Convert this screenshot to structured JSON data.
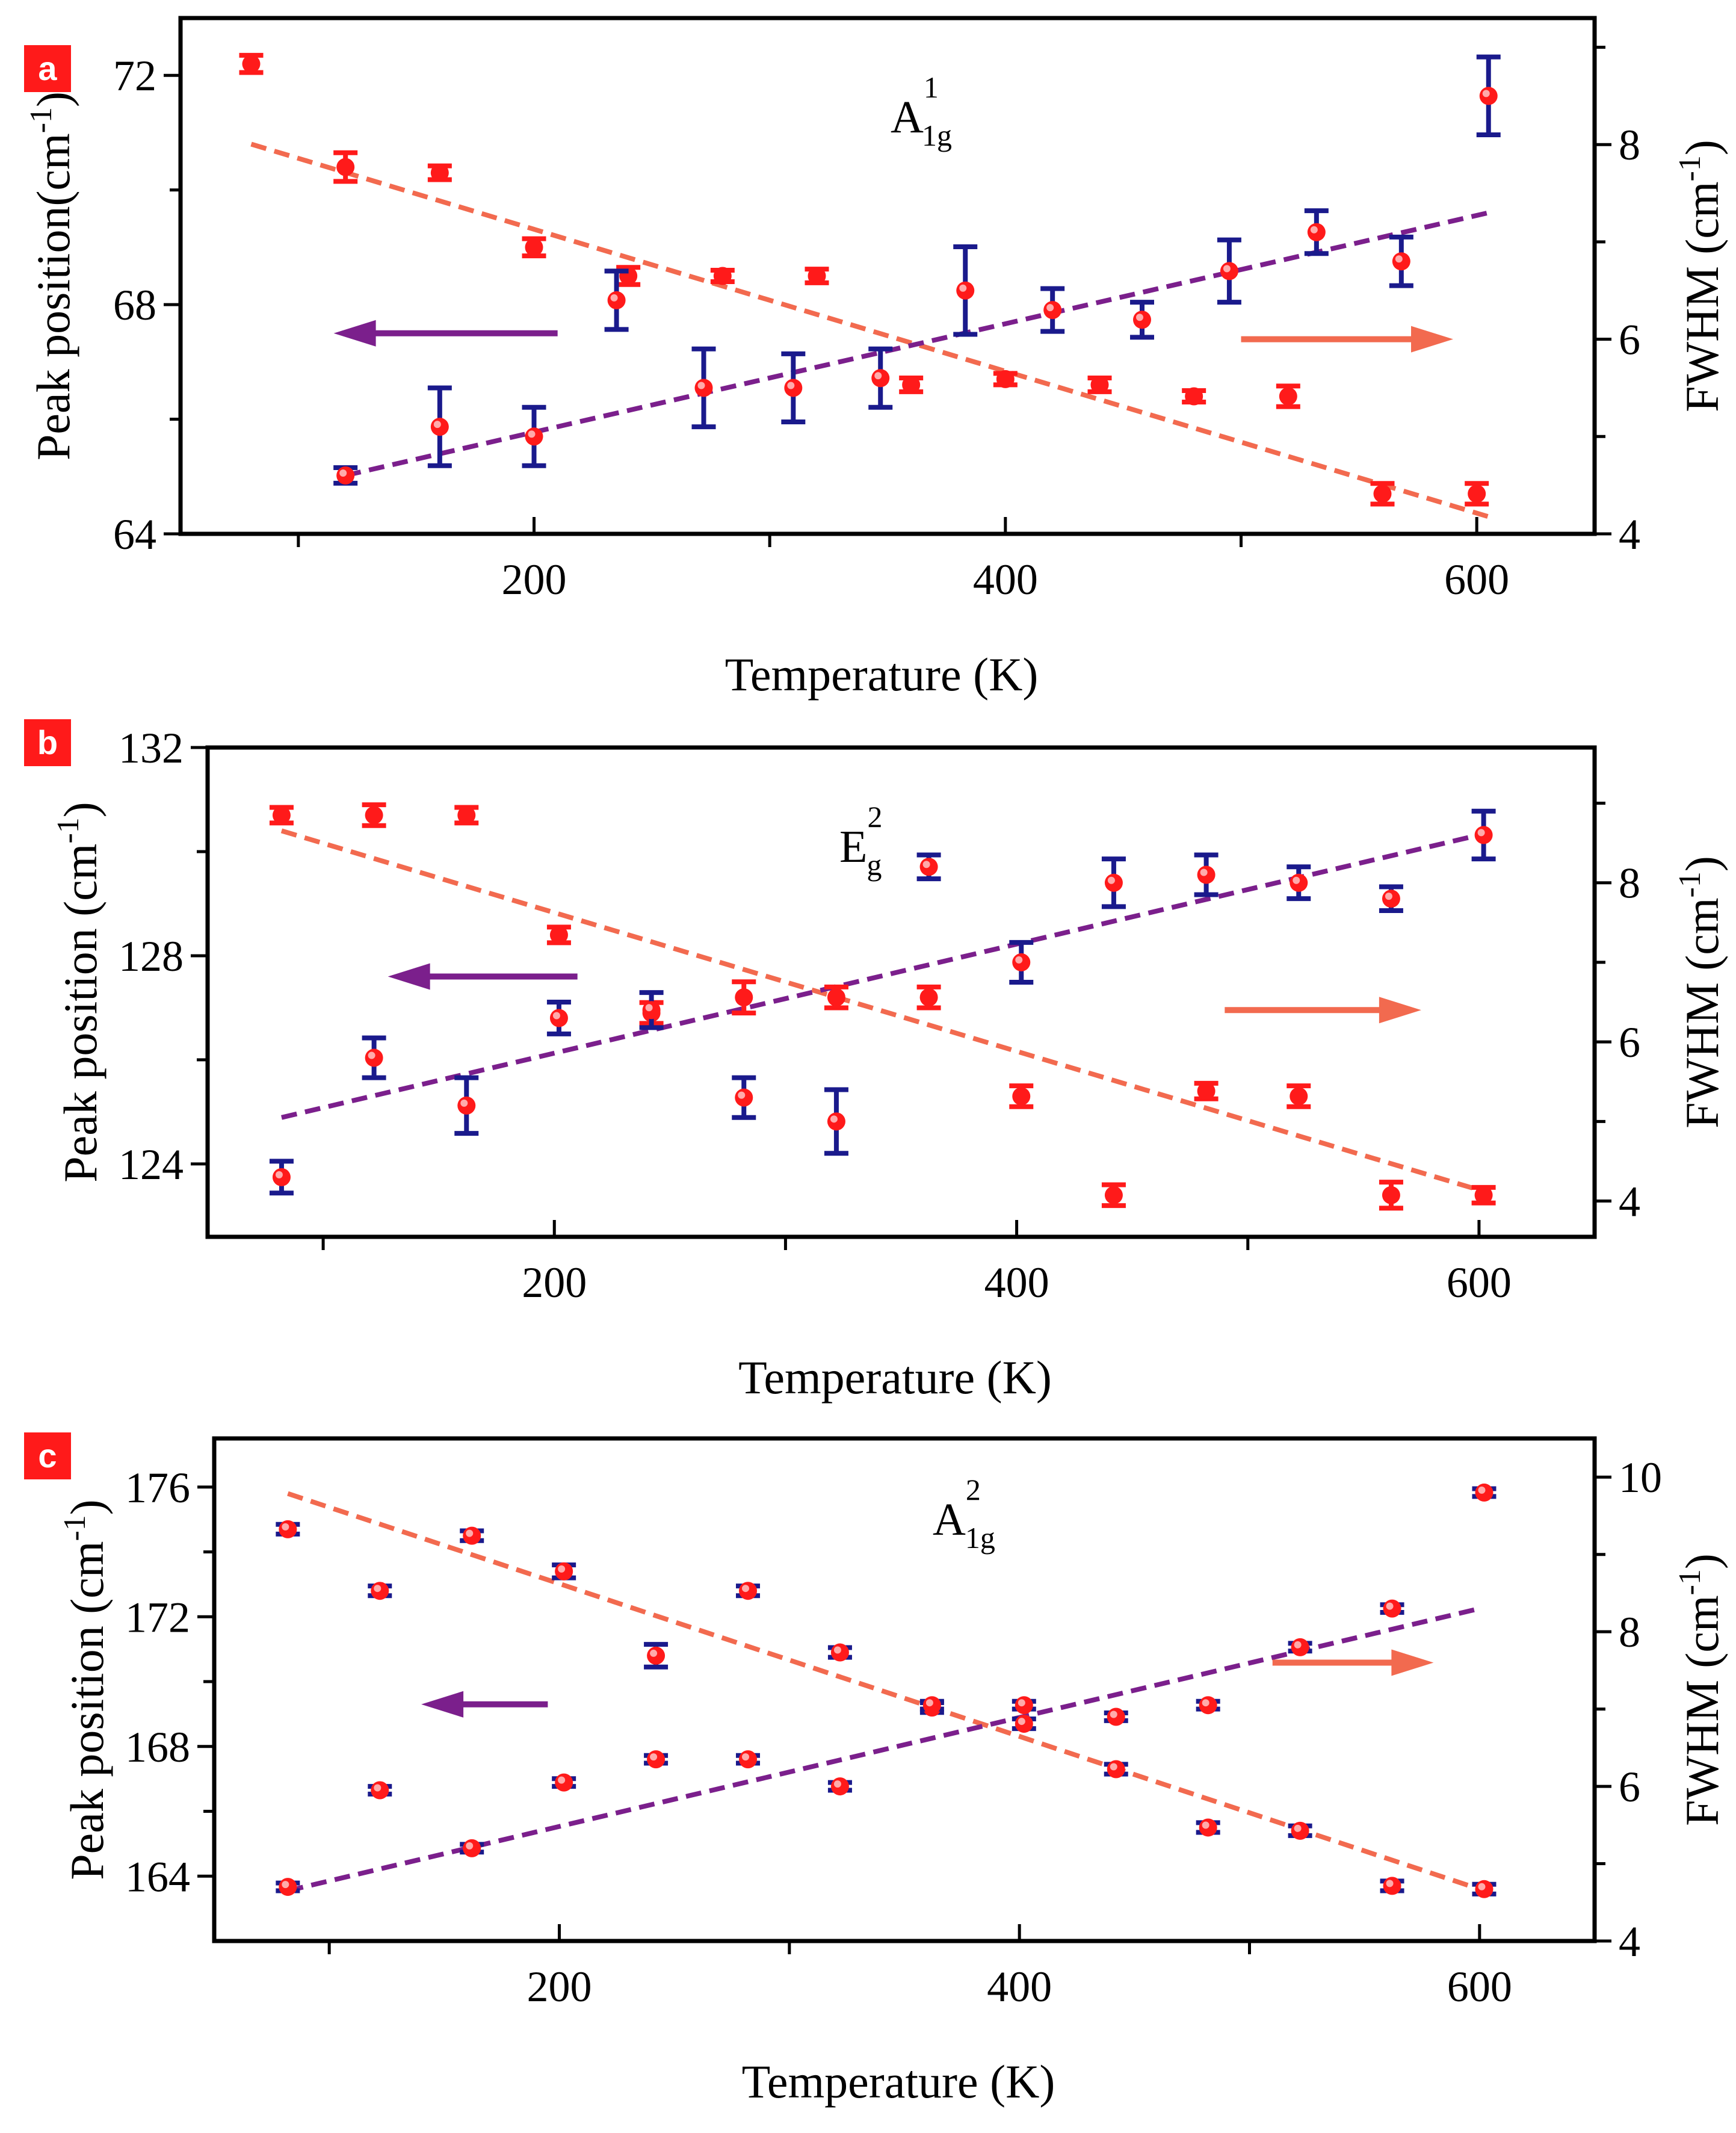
{
  "colors": {
    "peak": "#f26a4f",
    "fwhm": "#7b1f8c",
    "marker_red": "#ff1a1a",
    "marker_blue": "#1a1a8c",
    "badge": "#ff1a1a"
  },
  "chart_data": [
    {
      "type": "scatter",
      "panel": "a",
      "mode": {
        "base": "A",
        "sub": "1g",
        "sup": "1"
      },
      "xlabel": "Temperature (K)",
      "ylabel": "Peak position(cm⁻¹)",
      "ylabel_parts": {
        "main": "Peak position(cm",
        "sup": "-1",
        "tail": ")"
      },
      "y2label_parts": {
        "main": "FWHM (cm",
        "sup": "-1",
        "tail": ")"
      },
      "xlim": [
        50,
        650
      ],
      "ylim": [
        64,
        73
      ],
      "y2lim": [
        4,
        9.3
      ],
      "xticks": [
        200,
        400,
        600
      ],
      "xticks_minor": [
        100,
        300,
        500
      ],
      "yticks": [
        64,
        68,
        72
      ],
      "yticks_minor": [
        66,
        70
      ],
      "y2ticks": [
        4,
        6,
        8
      ],
      "y2ticks_minor": [
        5,
        7,
        9
      ],
      "series": [
        {
          "name": "Peak position",
          "axis": "left",
          "marker_color": "#ff1a1a",
          "errbar_color": "#ff1a1a",
          "points": [
            {
              "x": 80,
              "y": 72.2,
              "err": 0.15
            },
            {
              "x": 120,
              "y": 70.4,
              "err": 0.25
            },
            {
              "x": 160,
              "y": 70.3,
              "err": 0.12
            },
            {
              "x": 200,
              "y": 69.0,
              "err": 0.15
            },
            {
              "x": 240,
              "y": 68.5,
              "err": 0.15
            },
            {
              "x": 280,
              "y": 68.5,
              "err": 0.1
            },
            {
              "x": 320,
              "y": 68.5,
              "err": 0.12
            },
            {
              "x": 360,
              "y": 66.6,
              "err": 0.12
            },
            {
              "x": 400,
              "y": 66.7,
              "err": 0.1
            },
            {
              "x": 440,
              "y": 66.6,
              "err": 0.12
            },
            {
              "x": 480,
              "y": 66.4,
              "err": 0.1
            },
            {
              "x": 520,
              "y": 66.4,
              "err": 0.18
            },
            {
              "x": 560,
              "y": 64.7,
              "err": 0.18
            },
            {
              "x": 600,
              "y": 64.7,
              "err": 0.18
            }
          ]
        },
        {
          "name": "FWHM",
          "axis": "right",
          "marker_color": "#ff1a1a",
          "errbar_color": "#1a1a8c",
          "points": [
            {
              "x": 120,
              "y": 4.6,
              "err": 0.08
            },
            {
              "x": 160,
              "y": 5.1,
              "err": 0.4
            },
            {
              "x": 200,
              "y": 5.0,
              "err": 0.3
            },
            {
              "x": 235,
              "y": 6.4,
              "err": 0.3
            },
            {
              "x": 272,
              "y": 5.5,
              "err": 0.4
            },
            {
              "x": 310,
              "y": 5.5,
              "err": 0.35
            },
            {
              "x": 347,
              "y": 5.6,
              "err": 0.3
            },
            {
              "x": 383,
              "y": 6.5,
              "err": 0.45
            },
            {
              "x": 420,
              "y": 6.3,
              "err": 0.22
            },
            {
              "x": 458,
              "y": 6.2,
              "err": 0.18
            },
            {
              "x": 495,
              "y": 6.7,
              "err": 0.32
            },
            {
              "x": 532,
              "y": 7.1,
              "err": 0.22
            },
            {
              "x": 568,
              "y": 6.8,
              "err": 0.25
            },
            {
              "x": 605,
              "y": 8.5,
              "err": 0.4
            }
          ]
        }
      ],
      "fits": [
        {
          "name": "Peak position fit",
          "axis": "left",
          "color": "#f26a4f",
          "x": [
            80,
            605
          ],
          "y": [
            70.8,
            64.3
          ]
        },
        {
          "name": "FWHM fit",
          "axis": "right",
          "color": "#7b1f8c",
          "x": [
            120,
            605
          ],
          "y": [
            4.6,
            7.3
          ]
        }
      ],
      "arrows": [
        {
          "axis": "left",
          "direction": "left",
          "color": "#7b1f8c",
          "x": [
            115,
            210
          ],
          "y": 67.5
        },
        {
          "axis": "right",
          "direction": "right",
          "color": "#f26a4f",
          "x": [
            500,
            590
          ],
          "y": 6.0
        }
      ]
    },
    {
      "type": "scatter",
      "panel": "b",
      "mode": {
        "base": "E",
        "sub": "g",
        "sup": "2"
      },
      "xlabel": "Temperature (K)",
      "ylabel_parts": {
        "main": "Peak position (cm",
        "sup": "-1",
        "tail": ")"
      },
      "y2label_parts": {
        "main": "FWHM (cm",
        "sup": "-1",
        "tail": ")"
      },
      "xlim": [
        50,
        650
      ],
      "ylim": [
        122.6,
        132
      ],
      "y2lim": [
        3.55,
        9.7
      ],
      "xticks": [
        200,
        400,
        600
      ],
      "xticks_minor": [
        100,
        300,
        500
      ],
      "yticks": [
        124,
        128,
        132
      ],
      "yticks_minor": [
        126,
        130
      ],
      "y2ticks": [
        4,
        6,
        8
      ],
      "y2ticks_minor": [
        5,
        7,
        9
      ],
      "series": [
        {
          "name": "Peak position",
          "axis": "left",
          "marker_color": "#ff1a1a",
          "errbar_color": "#ff1a1a",
          "points": [
            {
              "x": 82,
              "y": 130.7,
              "err": 0.15
            },
            {
              "x": 122,
              "y": 130.7,
              "err": 0.2
            },
            {
              "x": 162,
              "y": 130.7,
              "err": 0.15
            },
            {
              "x": 202,
              "y": 128.4,
              "err": 0.15
            },
            {
              "x": 242,
              "y": 126.9,
              "err": 0.2
            },
            {
              "x": 282,
              "y": 127.2,
              "err": 0.3
            },
            {
              "x": 322,
              "y": 127.2,
              "err": 0.2
            },
            {
              "x": 362,
              "y": 127.2,
              "err": 0.2
            },
            {
              "x": 402,
              "y": 125.3,
              "err": 0.2
            },
            {
              "x": 442,
              "y": 123.4,
              "err": 0.2
            },
            {
              "x": 482,
              "y": 125.4,
              "err": 0.15
            },
            {
              "x": 522,
              "y": 125.3,
              "err": 0.2
            },
            {
              "x": 562,
              "y": 123.4,
              "err": 0.25
            },
            {
              "x": 602,
              "y": 123.4,
              "err": 0.15
            }
          ]
        },
        {
          "name": "FWHM",
          "axis": "right",
          "marker_color": "#ff1a1a",
          "errbar_color": "#1a1a8c",
          "points": [
            {
              "x": 82,
              "y": 4.3,
              "err": 0.2
            },
            {
              "x": 122,
              "y": 5.8,
              "err": 0.25
            },
            {
              "x": 162,
              "y": 5.2,
              "err": 0.35
            },
            {
              "x": 202,
              "y": 6.3,
              "err": 0.2
            },
            {
              "x": 242,
              "y": 6.4,
              "err": 0.22
            },
            {
              "x": 282,
              "y": 5.3,
              "err": 0.25
            },
            {
              "x": 322,
              "y": 5.0,
              "err": 0.4
            },
            {
              "x": 362,
              "y": 8.2,
              "err": 0.15
            },
            {
              "x": 402,
              "y": 7.0,
              "err": 0.25
            },
            {
              "x": 442,
              "y": 8.0,
              "err": 0.3
            },
            {
              "x": 482,
              "y": 8.1,
              "err": 0.25
            },
            {
              "x": 522,
              "y": 8.0,
              "err": 0.2
            },
            {
              "x": 562,
              "y": 7.8,
              "err": 0.15
            },
            {
              "x": 602,
              "y": 8.6,
              "err": 0.3
            }
          ]
        }
      ],
      "fits": [
        {
          "name": "Peak position fit",
          "axis": "left",
          "color": "#f26a4f",
          "x": [
            82,
            600
          ],
          "y": [
            130.4,
            123.5
          ]
        },
        {
          "name": "FWHM fit",
          "axis": "right",
          "color": "#7b1f8c",
          "x": [
            82,
            600
          ],
          "y": [
            5.05,
            8.6
          ]
        }
      ],
      "arrows": [
        {
          "axis": "left",
          "direction": "left",
          "color": "#7b1f8c",
          "x": [
            128,
            210
          ],
          "y": 127.6
        },
        {
          "axis": "right",
          "direction": "right",
          "color": "#f26a4f",
          "x": [
            490,
            575
          ],
          "y": 6.4
        }
      ]
    },
    {
      "type": "scatter",
      "panel": "c",
      "mode": {
        "base": "A",
        "sub": "1g",
        "sup": "2"
      },
      "xlabel": "Temperature (K)",
      "ylabel_parts": {
        "main": "Peak position (cm",
        "sup": "-1",
        "tail": ")"
      },
      "y2label_parts": {
        "main": "FWHM (cm",
        "sup": "-1",
        "tail": ")"
      },
      "xlim": [
        50,
        650
      ],
      "ylim": [
        162,
        177.5
      ],
      "y2lim": [
        4,
        10.5
      ],
      "xticks": [
        200,
        400,
        600
      ],
      "xticks_minor": [
        100,
        300,
        500
      ],
      "yticks": [
        164,
        168,
        172,
        176
      ],
      "yticks_minor": [
        166,
        170,
        174
      ],
      "y2ticks": [
        4,
        6,
        8,
        10
      ],
      "y2ticks_minor": [
        5,
        7,
        9
      ],
      "series": [
        {
          "name": "Peak position",
          "axis": "left",
          "marker_color": "#ff1a1a",
          "errbar_color": "#1a1a8c",
          "points": [
            {
              "x": 82,
              "y": 174.7,
              "err": 0.15
            },
            {
              "x": 122,
              "y": 172.8,
              "err": 0.15
            },
            {
              "x": 162,
              "y": 174.5,
              "err": 0.15
            },
            {
              "x": 202,
              "y": 173.4,
              "err": 0.2
            },
            {
              "x": 242,
              "y": 170.8,
              "err": 0.35
            },
            {
              "x": 282,
              "y": 172.8,
              "err": 0.15
            },
            {
              "x": 322,
              "y": 170.9,
              "err": 0.15
            },
            {
              "x": 362,
              "y": 169.2,
              "err": 0.15
            },
            {
              "x": 402,
              "y": 168.7,
              "err": 0.15
            },
            {
              "x": 442,
              "y": 167.3,
              "err": 0.15
            },
            {
              "x": 482,
              "y": 165.5,
              "err": 0.15
            },
            {
              "x": 522,
              "y": 165.4,
              "err": 0.15
            },
            {
              "x": 562,
              "y": 163.7,
              "err": 0.15
            },
            {
              "x": 602,
              "y": 163.6,
              "err": 0.15
            }
          ]
        },
        {
          "name": "FWHM",
          "axis": "right",
          "marker_color": "#ff1a1a",
          "errbar_color": "#1a1a8c",
          "points": [
            {
              "x": 82,
              "y": 4.7,
              "err": 0.05
            },
            {
              "x": 122,
              "y": 5.95,
              "err": 0.05
            },
            {
              "x": 162,
              "y": 5.2,
              "err": 0.05
            },
            {
              "x": 202,
              "y": 6.05,
              "err": 0.05
            },
            {
              "x": 242,
              "y": 6.35,
              "err": 0.05
            },
            {
              "x": 282,
              "y": 6.35,
              "err": 0.05
            },
            {
              "x": 322,
              "y": 6.0,
              "err": 0.05
            },
            {
              "x": 362,
              "y": 7.05,
              "err": 0.05
            },
            {
              "x": 402,
              "y": 7.05,
              "err": 0.05
            },
            {
              "x": 442,
              "y": 6.9,
              "err": 0.05
            },
            {
              "x": 482,
              "y": 7.05,
              "err": 0.05
            },
            {
              "x": 522,
              "y": 7.8,
              "err": 0.05
            },
            {
              "x": 562,
              "y": 8.3,
              "err": 0.05
            },
            {
              "x": 602,
              "y": 9.8,
              "err": 0.05
            }
          ]
        }
      ],
      "fits": [
        {
          "name": "Peak position fit",
          "axis": "left",
          "color": "#f26a4f",
          "x": [
            82,
            600
          ],
          "y": [
            175.8,
            163.6
          ]
        },
        {
          "name": "FWHM fit",
          "axis": "right",
          "color": "#7b1f8c",
          "x": [
            82,
            600
          ],
          "y": [
            4.65,
            8.3
          ]
        }
      ],
      "arrows": [
        {
          "axis": "left",
          "direction": "left",
          "color": "#7b1f8c",
          "x": [
            140,
            195
          ],
          "y": 169.3
        },
        {
          "axis": "right",
          "direction": "right",
          "color": "#f26a4f",
          "x": [
            510,
            580
          ],
          "y": 7.6
        }
      ]
    }
  ]
}
